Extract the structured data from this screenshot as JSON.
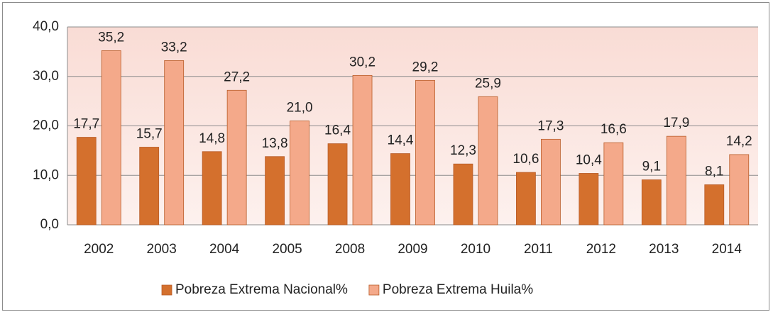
{
  "chart_data": {
    "type": "bar",
    "categories": [
      "2002",
      "2003",
      "2004",
      "2005",
      "2008",
      "2009",
      "2010",
      "2011",
      "2012",
      "2013",
      "2014"
    ],
    "series": [
      {
        "name": "Pobreza Extrema Nacional%",
        "color": "#d4702d",
        "values": [
          17.7,
          15.7,
          14.8,
          13.8,
          16.4,
          14.4,
          12.3,
          10.6,
          10.4,
          9.1,
          8.1
        ],
        "value_labels": [
          "17,7",
          "15,7",
          "14,8",
          "13,8",
          "16,4",
          "14,4",
          "12,3",
          "10,6",
          "10,4",
          "9,1",
          "8,1"
        ]
      },
      {
        "name": "Pobreza Extrema Huila%",
        "color": "#f4a98a",
        "values": [
          35.2,
          33.2,
          27.2,
          21.0,
          30.2,
          29.2,
          25.9,
          17.3,
          16.6,
          17.9,
          14.2
        ],
        "value_labels": [
          "35,2",
          "33,2",
          "27,2",
          "21,0",
          "30,2",
          "29,2",
          "25,9",
          "17,3",
          "16,6",
          "17,9",
          "14,2"
        ]
      }
    ],
    "ylim": [
      0,
      40
    ],
    "yticks": [
      {
        "value": 0,
        "label": "0,0"
      },
      {
        "value": 10,
        "label": "10,0"
      },
      {
        "value": 20,
        "label": "20,0"
      },
      {
        "value": 30,
        "label": "30,0"
      },
      {
        "value": 40,
        "label": "40,0"
      }
    ],
    "grid": true,
    "legend": "bottom"
  }
}
